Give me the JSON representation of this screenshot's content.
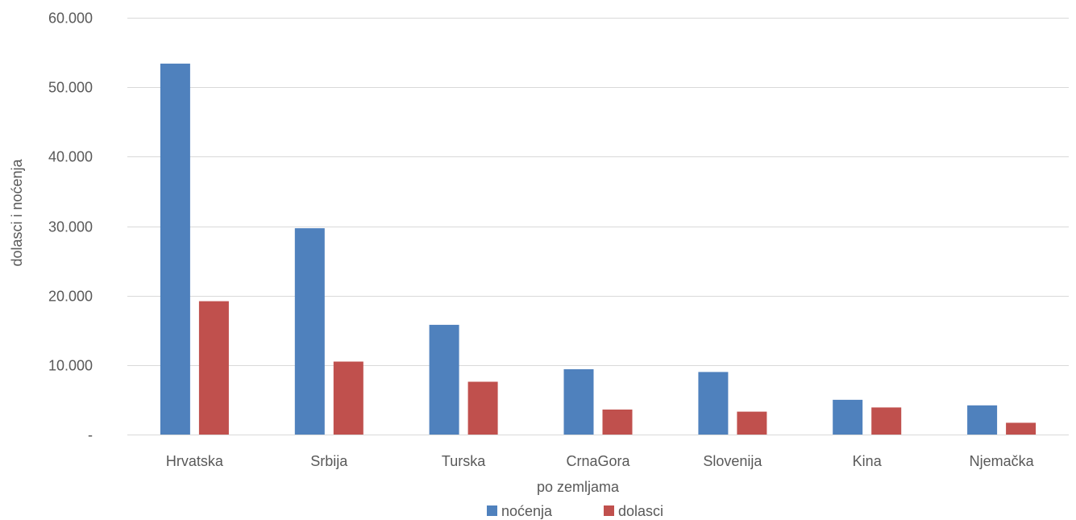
{
  "chart_data": {
    "type": "bar",
    "title": "",
    "xlabel": "po zemljama",
    "ylabel": "dolasci i noćenja",
    "categories": [
      "Hrvatska",
      "Srbija",
      "Turska",
      "CrnaGora",
      "Slovenija",
      "Kina",
      "Njemačka"
    ],
    "series": [
      {
        "name": "noćenja",
        "color": "#4f81bd",
        "values": [
          53400,
          29700,
          15800,
          9400,
          9000,
          5000,
          4200
        ]
      },
      {
        "name": "dolasci",
        "color": "#c0504d",
        "values": [
          19200,
          10500,
          7600,
          3600,
          3300,
          3900,
          1700
        ]
      }
    ],
    "ylim": [
      0,
      60000
    ],
    "yticks": [
      {
        "value": 0,
        "label": "-"
      },
      {
        "value": 10000,
        "label": "10.000"
      },
      {
        "value": 20000,
        "label": "20.000"
      },
      {
        "value": 30000,
        "label": "30.000"
      },
      {
        "value": 40000,
        "label": "40.000"
      },
      {
        "value": 50000,
        "label": "50.000"
      },
      {
        "value": 60000,
        "label": "60.000"
      }
    ],
    "grid": true,
    "legend_position": "bottom"
  }
}
